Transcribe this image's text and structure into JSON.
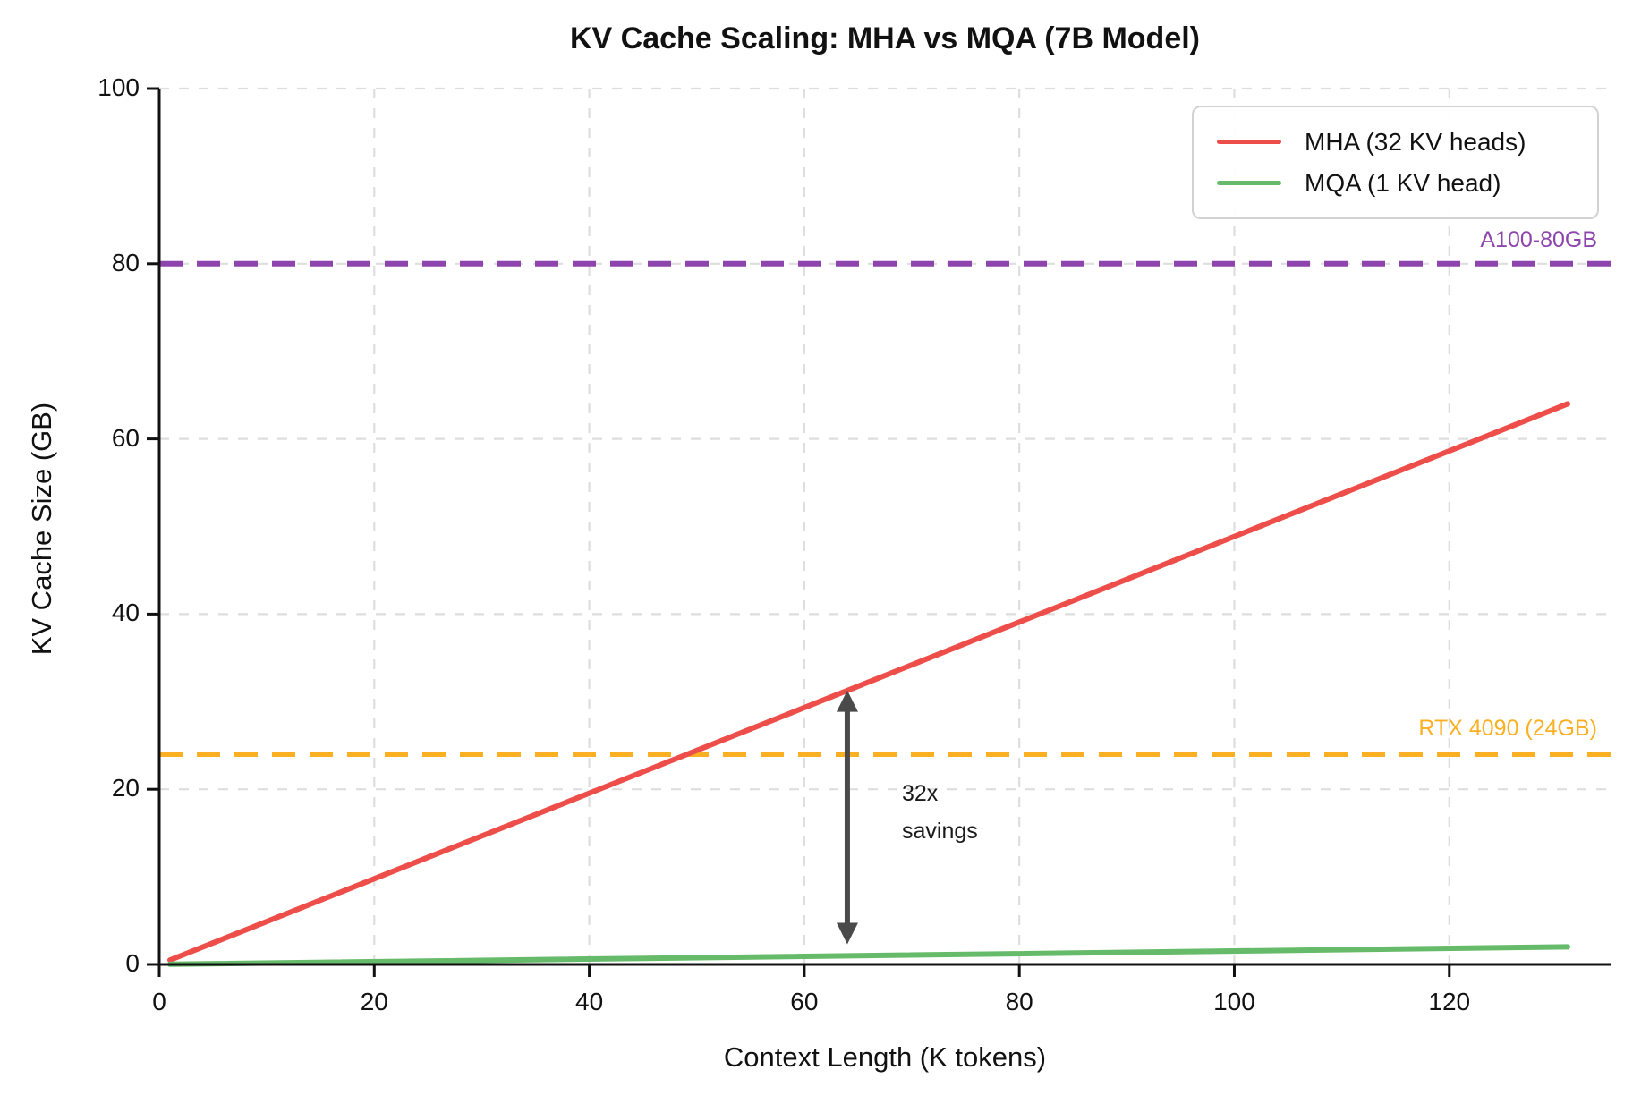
{
  "title": "KV Cache Scaling: MHA vs MQA (7B Model)",
  "axes": {
    "x_label": "Context Length (K tokens)",
    "y_label": "KV Cache Size (GB)"
  },
  "legend": {
    "items": [
      {
        "label": "MHA (32 KV heads)",
        "color": "#ee4e49"
      },
      {
        "label": "MQA (1 KV head)",
        "color": "#66bb6a"
      }
    ]
  },
  "colors": {
    "grid": "#dedede",
    "axis": "#111111",
    "arrow": "#4a4a4a",
    "background": "#ffffff"
  },
  "chart_data": {
    "type": "line",
    "title": "KV Cache Scaling: MHA vs MQA (7B Model)",
    "xlabel": "Context Length (K tokens)",
    "ylabel": "KV Cache Size (GB)",
    "xlim": [
      0,
      135
    ],
    "ylim": [
      0,
      100
    ],
    "x_ticks": [
      0,
      20,
      40,
      60,
      80,
      100,
      120
    ],
    "y_ticks": [
      0,
      20,
      40,
      60,
      80,
      100
    ],
    "grid": true,
    "legend_position": "upper right",
    "series": [
      {
        "name": "MHA (32 KV heads)",
        "color": "#ee4e49",
        "x": [
          1,
          131
        ],
        "y": [
          0.5,
          64.0
        ]
      },
      {
        "name": "MQA (1 KV head)",
        "color": "#66bb6a",
        "x": [
          1,
          131
        ],
        "y": [
          0.02,
          2.0
        ]
      }
    ],
    "reference_lines": [
      {
        "value": 80,
        "label": "A100-80GB",
        "color": "#8e44ad"
      },
      {
        "value": 24,
        "label": "RTX 4090 (24GB)",
        "color": "#fbb024"
      }
    ],
    "annotation": {
      "x": 64,
      "y_from": 2.3,
      "y_to": 31.3,
      "label_lines": [
        "32x",
        "savings"
      ],
      "label_x": 69,
      "label_y": 20
    }
  }
}
